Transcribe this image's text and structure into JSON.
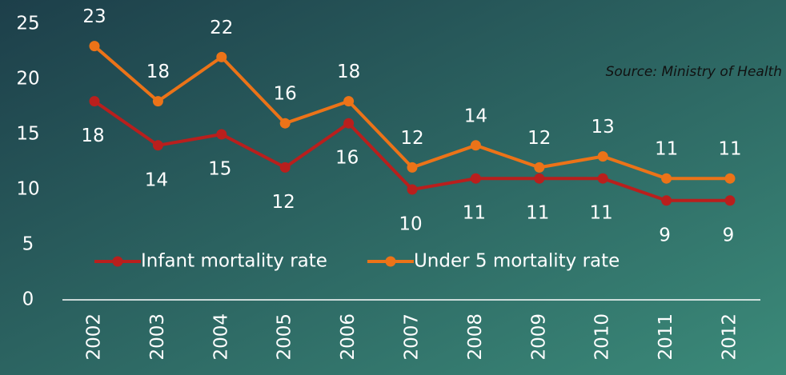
{
  "chart_data": {
    "type": "line",
    "annotation": "Source: Ministry of Health",
    "x": [
      "2002",
      "2003",
      "2004",
      "2005",
      "2006",
      "2007",
      "2008",
      "2009",
      "2010",
      "2011",
      "2012"
    ],
    "series": [
      {
        "name": "Infant mortality rate",
        "color": "#b91f1d",
        "values": [
          18,
          14,
          15,
          12,
          16,
          10,
          11,
          11,
          11,
          9,
          9
        ]
      },
      {
        "name": "Under 5 mortality rate",
        "color": "#ec7318",
        "values": [
          23,
          18,
          22,
          16,
          18,
          12,
          14,
          12,
          13,
          11,
          11
        ]
      }
    ],
    "ylim": [
      0,
      25
    ],
    "yticks": [
      0,
      5,
      10,
      15,
      20,
      25
    ],
    "grid": false,
    "legend": "bottom"
  }
}
